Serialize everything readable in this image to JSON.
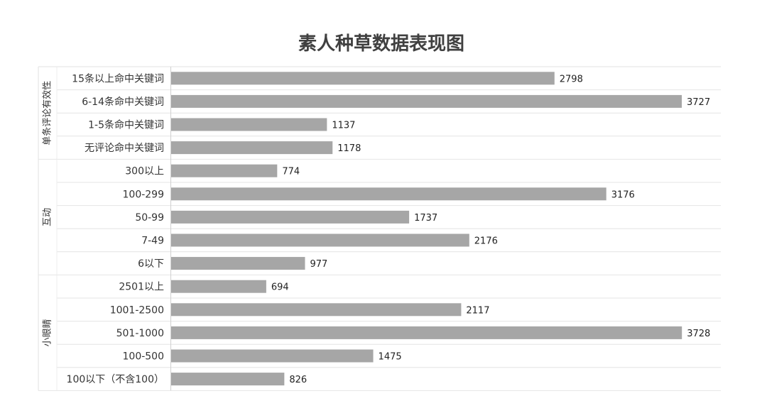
{
  "chart_data": {
    "type": "bar",
    "orientation": "horizontal",
    "title": "素人种草数据表现图",
    "xlabel": "",
    "ylabel": "",
    "xlim": [
      0,
      4000
    ],
    "grid": false,
    "legend": "none",
    "bar_color": "#a6a6a6",
    "groups": [
      {
        "name": "单条评论有效性",
        "categories": [
          "15条以上命中关键词",
          "6-14条命中关键词",
          "1-5条命中关键词",
          "无评论命中关键词"
        ],
        "values": [
          2798,
          3727,
          1137,
          1178
        ]
      },
      {
        "name": "互动",
        "categories": [
          "300以上",
          "100-299",
          "50-99",
          "7-49",
          "6以下"
        ],
        "values": [
          774,
          3176,
          1737,
          2176,
          977
        ]
      },
      {
        "name": "小眼睛",
        "categories": [
          "2501以上",
          "1001-2500",
          "501-1000",
          "100-500",
          "100以下（不含100）"
        ],
        "values": [
          694,
          2117,
          3728,
          1475,
          826
        ]
      }
    ]
  }
}
